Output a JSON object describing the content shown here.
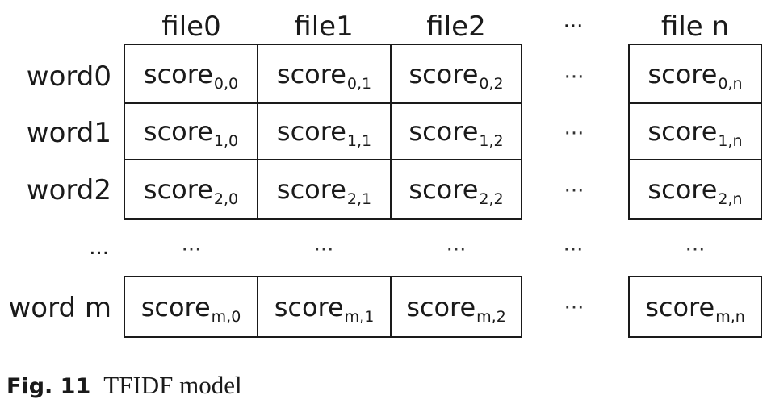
{
  "columns": [
    "file0",
    "file1",
    "file2",
    "···",
    "file n"
  ],
  "rows": [
    "word0",
    "word1",
    "word2",
    "...",
    "word m"
  ],
  "cell_label": "score",
  "row_subscripts": [
    "0",
    "1",
    "2",
    "m"
  ],
  "col_subscripts": [
    "0",
    "1",
    "2",
    "n"
  ],
  "cells": [
    [
      "0,0",
      "0,1",
      "0,2",
      "0,n"
    ],
    [
      "1,0",
      "1,1",
      "1,2",
      "1,n"
    ],
    [
      "2,0",
      "2,1",
      "2,2",
      "2,n"
    ],
    [
      "m,0",
      "m,1",
      "m,2",
      "m,n"
    ]
  ],
  "ellipsis_horizontal": "···",
  "ellipsis_vertical": "···",
  "caption": {
    "figure": "Fig. 11",
    "title": "TFIDF model"
  }
}
